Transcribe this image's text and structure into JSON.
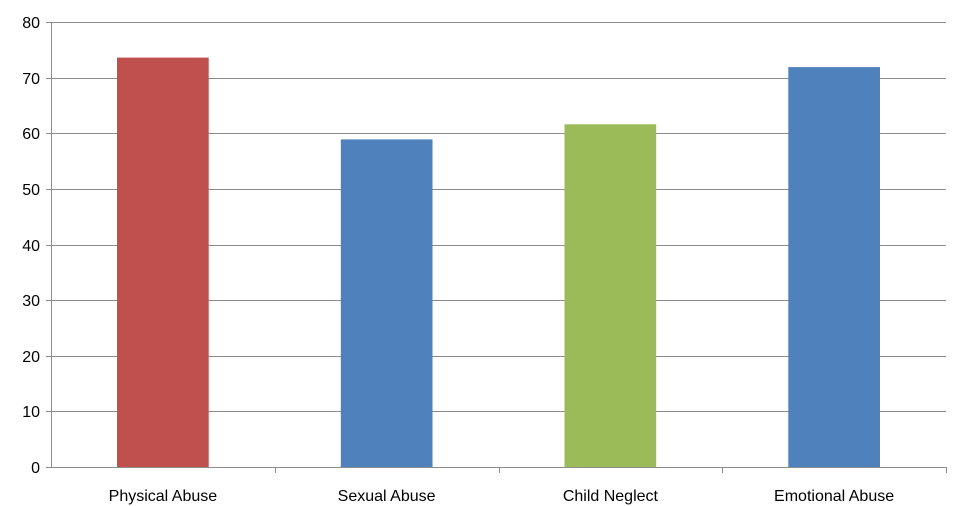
{
  "chart_data": {
    "type": "bar",
    "title": "",
    "xlabel": "",
    "ylabel": "",
    "categories": [
      "Physical Abuse",
      "Sexual Abuse",
      "Child Neglect",
      "Emotional Abuse"
    ],
    "values": [
      73.6,
      58.9,
      61.6,
      71.9
    ],
    "colors": [
      "#C0504D",
      "#4F81BD",
      "#9BBB59",
      "#4F81BD"
    ],
    "ylim": [
      0,
      80
    ],
    "yticks": [
      0,
      10,
      20,
      30,
      40,
      50,
      60,
      70,
      80
    ],
    "grid": true,
    "legend": "none"
  }
}
